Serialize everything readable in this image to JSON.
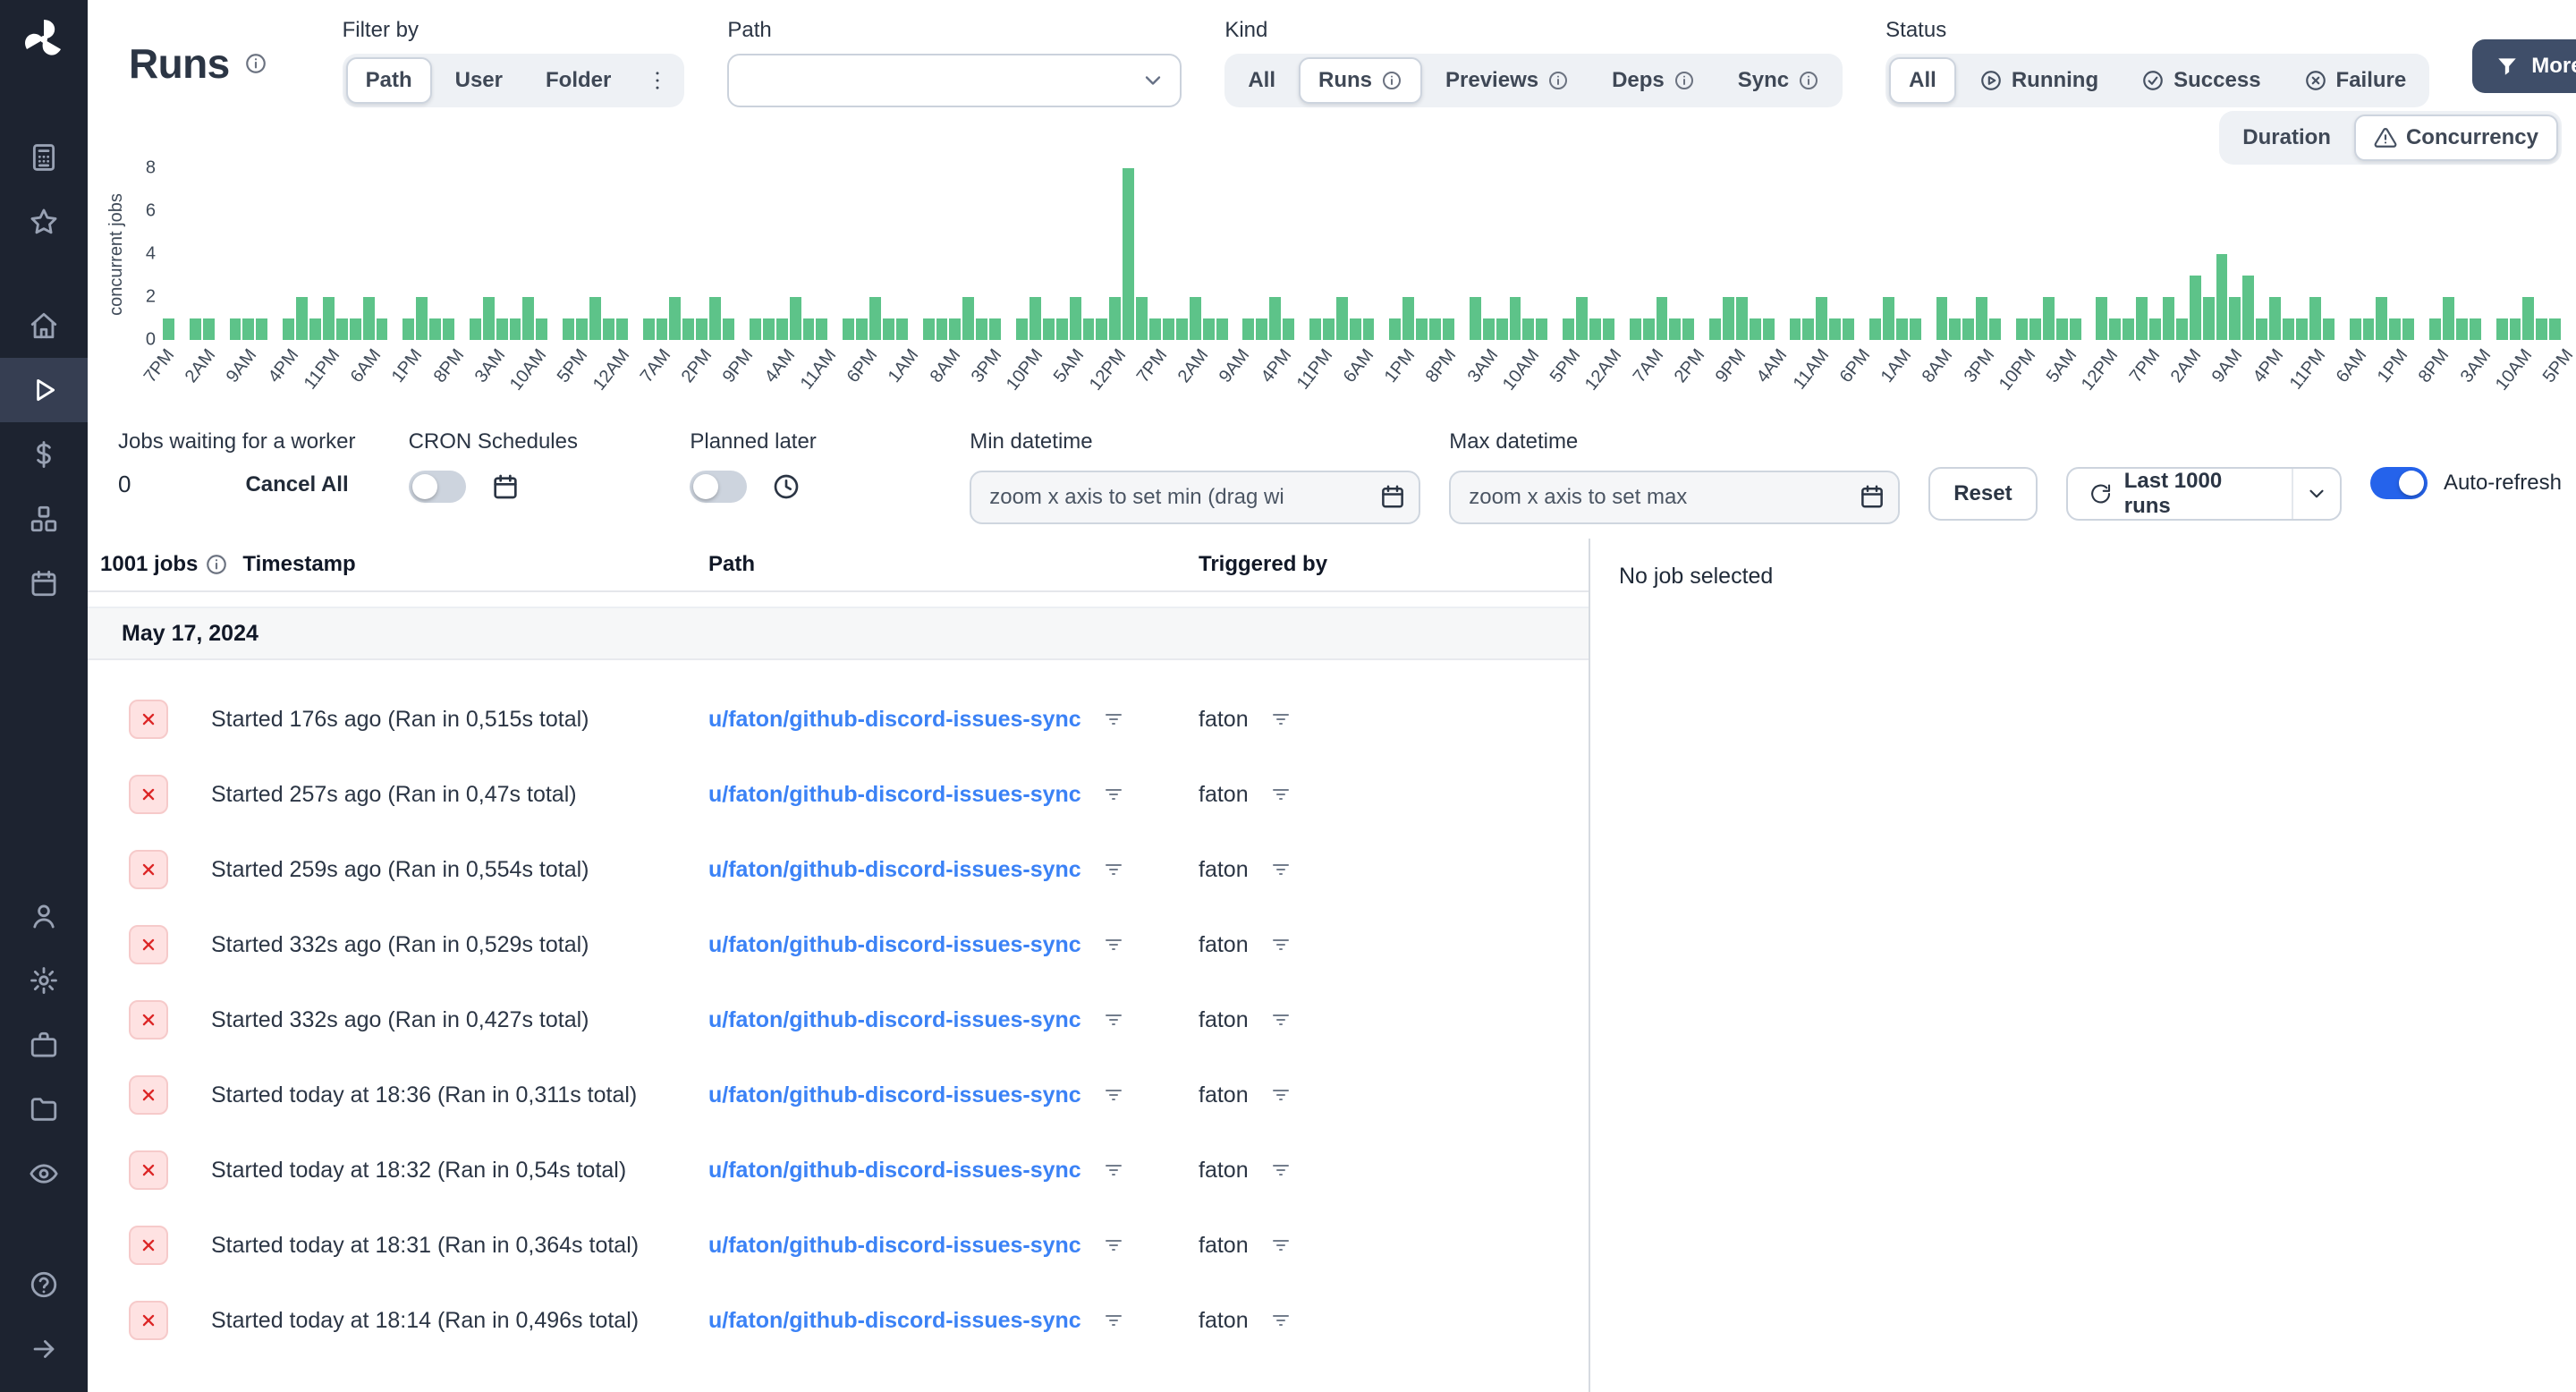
{
  "header": {
    "title": "Runs",
    "filter_by": {
      "label": "Filter by",
      "options": [
        "Path",
        "User",
        "Folder"
      ],
      "selected": "Path"
    },
    "path_filter": {
      "label": "Path",
      "value": ""
    },
    "kind": {
      "label": "Kind",
      "options": [
        "All",
        "Runs",
        "Previews",
        "Deps",
        "Sync"
      ],
      "selected": "Runs"
    },
    "status": {
      "label": "Status",
      "options": [
        "All",
        "Running",
        "Success",
        "Failure"
      ],
      "selected": "All"
    },
    "more_filters_label": "More filters"
  },
  "chart_controls": {
    "duration_label": "Duration",
    "concurrency_label": "Concurrency",
    "selected": "Concurrency"
  },
  "chart_data": {
    "type": "bar",
    "ylabel": "concurrent jobs",
    "ylim": [
      0,
      8
    ],
    "y_ticks": [
      0,
      2,
      4,
      6,
      8
    ],
    "bar_color": "#5dc389",
    "x_ticks": [
      "7PM",
      "2AM",
      "9AM",
      "4PM",
      "11PM",
      "6AM",
      "1PM",
      "8PM",
      "3AM",
      "10AM",
      "5PM",
      "12AM",
      "7AM",
      "2PM",
      "9PM",
      "4AM",
      "11AM",
      "6PM",
      "1AM",
      "8AM",
      "3PM",
      "10PM",
      "5AM",
      "12PM",
      "7PM",
      "2AM",
      "9AM",
      "4PM",
      "11PM",
      "6AM",
      "1PM",
      "8PM",
      "3AM",
      "10AM",
      "5PM",
      "12AM",
      "7AM",
      "2PM",
      "9PM",
      "4AM",
      "11AM",
      "6PM",
      "1AM",
      "8AM",
      "3PM",
      "10PM",
      "5AM",
      "12PM",
      "7PM",
      "2AM",
      "9AM",
      "4PM",
      "11PM",
      "6AM",
      "1PM",
      "8PM",
      "3AM",
      "10AM",
      "5PM"
    ],
    "values": [
      1,
      0,
      1,
      1,
      0,
      1,
      1,
      1,
      0,
      1,
      2,
      1,
      2,
      1,
      1,
      2,
      1,
      0,
      1,
      2,
      1,
      1,
      0,
      1,
      2,
      1,
      1,
      2,
      1,
      0,
      1,
      1,
      2,
      1,
      1,
      0,
      1,
      1,
      2,
      1,
      1,
      2,
      1,
      0,
      1,
      1,
      1,
      2,
      1,
      1,
      0,
      1,
      1,
      2,
      1,
      1,
      0,
      1,
      1,
      1,
      2,
      1,
      1,
      0,
      1,
      2,
      1,
      1,
      2,
      1,
      1,
      2,
      8,
      2,
      1,
      1,
      1,
      2,
      1,
      1,
      0,
      1,
      1,
      2,
      1,
      0,
      1,
      1,
      2,
      1,
      1,
      0,
      1,
      2,
      1,
      1,
      1,
      0,
      2,
      1,
      1,
      2,
      1,
      1,
      0,
      1,
      2,
      1,
      1,
      0,
      1,
      1,
      2,
      1,
      1,
      0,
      1,
      2,
      2,
      1,
      1,
      0,
      1,
      1,
      2,
      1,
      1,
      0,
      1,
      2,
      1,
      1,
      0,
      2,
      1,
      1,
      2,
      1,
      0,
      1,
      1,
      2,
      1,
      1,
      0,
      2,
      1,
      1,
      2,
      1,
      2,
      1,
      3,
      2,
      4,
      2,
      3,
      1,
      2,
      1,
      1,
      2,
      1,
      0,
      1,
      1,
      2,
      1,
      1,
      0,
      1,
      2,
      1,
      1,
      0,
      1,
      1,
      2,
      1,
      1
    ]
  },
  "toolbar": {
    "jobs_waiting": {
      "label": "Jobs waiting for a worker",
      "count": "0",
      "cancel_all_label": "Cancel All"
    },
    "cron_schedules": {
      "label": "CRON Schedules",
      "enabled": false
    },
    "planned_later": {
      "label": "Planned later",
      "enabled": false
    },
    "min_datetime": {
      "label": "Min datetime",
      "placeholder": "zoom x axis to set min (drag wi"
    },
    "max_datetime": {
      "label": "Max datetime",
      "placeholder": "zoom x axis to set max"
    },
    "reset_label": "Reset",
    "runs_limit_label": "Last 1000 runs",
    "auto_refresh": {
      "label": "Auto-refresh",
      "enabled": true
    }
  },
  "table": {
    "jobs_count": "1001 jobs",
    "columns": {
      "timestamp": "Timestamp",
      "path": "Path",
      "triggered_by": "Triggered by"
    },
    "date_group": "May 17, 2024",
    "rows": [
      {
        "status": "failure",
        "timestamp": "Started 176s ago (Ran in 0,515s total)",
        "path": "u/faton/github-discord-issues-sync",
        "triggered_by": "faton"
      },
      {
        "status": "failure",
        "timestamp": "Started 257s ago (Ran in 0,47s total)",
        "path": "u/faton/github-discord-issues-sync",
        "triggered_by": "faton"
      },
      {
        "status": "failure",
        "timestamp": "Started 259s ago (Ran in 0,554s total)",
        "path": "u/faton/github-discord-issues-sync",
        "triggered_by": "faton"
      },
      {
        "status": "failure",
        "timestamp": "Started 332s ago (Ran in 0,529s total)",
        "path": "u/faton/github-discord-issues-sync",
        "triggered_by": "faton"
      },
      {
        "status": "failure",
        "timestamp": "Started 332s ago (Ran in 0,427s total)",
        "path": "u/faton/github-discord-issues-sync",
        "triggered_by": "faton"
      },
      {
        "status": "failure",
        "timestamp": "Started today at 18:36 (Ran in 0,311s total)",
        "path": "u/faton/github-discord-issues-sync",
        "triggered_by": "faton"
      },
      {
        "status": "failure",
        "timestamp": "Started today at 18:32 (Ran in 0,54s total)",
        "path": "u/faton/github-discord-issues-sync",
        "triggered_by": "faton"
      },
      {
        "status": "failure",
        "timestamp": "Started today at 18:31 (Ran in 0,364s total)",
        "path": "u/faton/github-discord-issues-sync",
        "triggered_by": "faton"
      },
      {
        "status": "failure",
        "timestamp": "Started today at 18:14 (Ran in 0,496s total)",
        "path": "u/faton/github-discord-issues-sync",
        "triggered_by": "faton"
      }
    ]
  },
  "detail_panel": {
    "empty_label": "No job selected"
  },
  "sidebar": {
    "items": [
      "windmill-logo",
      "calculator",
      "star",
      "home",
      "runs",
      "variables",
      "resources",
      "schedules",
      "user",
      "settings",
      "workers",
      "folders",
      "audit-logs",
      "help",
      "expand"
    ]
  },
  "colors": {
    "accent_blue": "#3b82f6",
    "bar_green": "#5dc389",
    "failure_red": "#dc2626",
    "sidebar_bg": "#1d2330",
    "dark_button": "#3f4e69",
    "toggle_on": "#2563eb"
  }
}
